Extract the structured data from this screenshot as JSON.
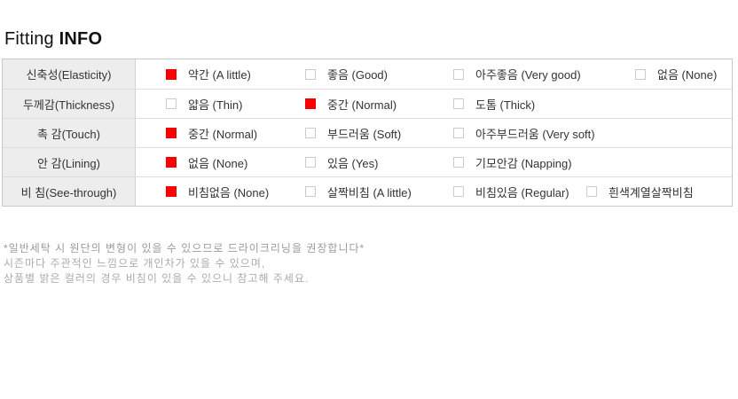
{
  "title": {
    "regular": "Fitting",
    "bold": "INFO"
  },
  "colors": {
    "selected_checkbox": "#ff0000",
    "unselected_checkbox_border": "#cccccc",
    "label_cell_background": "#ededed",
    "table_border": "#c8c8c8",
    "option_text": "#333333",
    "note_text": "#ababab"
  },
  "table": {
    "rows": [
      {
        "label": "신축성(Elasticity)",
        "options": [
          {
            "label": "약간 (A little)",
            "selected": true
          },
          {
            "label": "좋음 (Good)",
            "selected": false
          },
          {
            "label": "아주좋음 (Very good)",
            "selected": false
          },
          {
            "label": "없음 (None)",
            "selected": false
          }
        ]
      },
      {
        "label": "두께감(Thickness)",
        "options": [
          {
            "label": "얇음 (Thin)",
            "selected": false
          },
          {
            "label": "중간 (Normal)",
            "selected": true
          },
          {
            "label": "도톰 (Thick)",
            "selected": false
          }
        ]
      },
      {
        "label": "촉 감(Touch)",
        "options": [
          {
            "label": "중간 (Normal)",
            "selected": true
          },
          {
            "label": "부드러움 (Soft)",
            "selected": false
          },
          {
            "label": "아주부드러움 (Very soft)",
            "selected": false
          }
        ]
      },
      {
        "label": "안 감(Lining)",
        "options": [
          {
            "label": "없음 (None)",
            "selected": true
          },
          {
            "label": "있음 (Yes)",
            "selected": false
          },
          {
            "label": "기모안감 (Napping)",
            "selected": false
          }
        ]
      },
      {
        "label": "비 침(See-through)",
        "options": [
          {
            "label": "비침없음 (None)",
            "selected": true
          },
          {
            "label": "살짝비침 (A little)",
            "selected": false
          },
          {
            "label": "비침있음 (Regular)",
            "selected": false
          },
          {
            "label": "흰색계열살짝비침",
            "selected": false
          }
        ]
      }
    ]
  },
  "notes": [
    "*일반세탁 시 원단의 변형이 있을 수 있으므로 드라이크리닝을 권장합니다*",
    "시즌마다 주관적인 느낌으로 개인차가 있을 수 있으며,",
    "상품별 밝은 컬러의 경우 비침이 있을 수 있으니 참고해 주세요."
  ]
}
